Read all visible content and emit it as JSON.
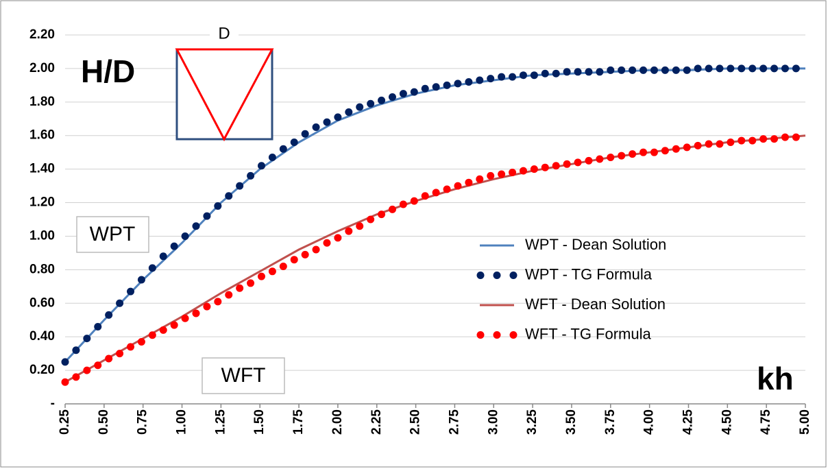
{
  "chart_data": {
    "type": "line",
    "x_label": "kh",
    "y_label": "H/D",
    "annotations": [
      "WPT",
      "WFT",
      "D"
    ],
    "xlim": [
      0.25,
      5.0
    ],
    "ylim": [
      0,
      2.2
    ],
    "grid": true,
    "legend": "right",
    "xticks": [
      0.25,
      {
        "value": 0.5,
        "label": "0.50"
      },
      0.75,
      {
        "value": 1.0,
        "label": "1.00"
      },
      1.25,
      {
        "value": 1.5,
        "label": "1.50"
      },
      1.75,
      {
        "value": 2.0,
        "label": "2.00"
      },
      2.25,
      {
        "value": 2.5,
        "label": "2.50"
      },
      2.75,
      {
        "value": 3.0,
        "label": "3.00"
      },
      3.25,
      {
        "value": 3.5,
        "label": "3.50"
      },
      3.75,
      {
        "value": 4.0,
        "label": "4.00"
      },
      4.25,
      {
        "value": 4.5,
        "label": "4.50"
      },
      4.75,
      {
        "value": 5.0,
        "label": "5.00"
      }
    ],
    "yticks": [
      {
        "value": 0,
        "label": "-"
      },
      {
        "value": 0.2,
        "label": "0.20"
      },
      {
        "value": 0.4,
        "label": "0.40"
      },
      {
        "value": 0.6,
        "label": "0.60"
      },
      {
        "value": 0.8,
        "label": "0.80"
      },
      {
        "value": 1.0,
        "label": "1.00"
      },
      {
        "value": 1.2,
        "label": "1.20"
      },
      {
        "value": 1.4,
        "label": "1.40"
      },
      {
        "value": 1.6,
        "label": "1.60"
      },
      {
        "value": 1.8,
        "label": "1.80"
      },
      {
        "value": 2.0,
        "label": "2.00"
      },
      {
        "value": 2.2,
        "label": "2.20"
      }
    ],
    "series": [
      {
        "name": "WPT - Dean Solution",
        "color": "#4f81bd",
        "style": "line",
        "x": [
          0.25,
          0.5,
          0.75,
          1.0,
          1.25,
          1.5,
          1.75,
          2.0,
          2.25,
          2.5,
          2.75,
          3.0,
          3.25,
          3.5,
          3.75,
          4.0,
          4.25,
          4.5,
          4.75,
          5.0
        ],
        "values": [
          0.25,
          0.5,
          0.74,
          0.96,
          1.2,
          1.4,
          1.56,
          1.69,
          1.78,
          1.85,
          1.9,
          1.93,
          1.96,
          1.97,
          1.98,
          1.99,
          1.99,
          2.0,
          2.0,
          2.0
        ]
      },
      {
        "name": "WPT - TG Formula",
        "color": "#002060",
        "style": "dots",
        "x": [
          0.25,
          0.32,
          0.39,
          0.46,
          0.53,
          0.6,
          0.67,
          0.74,
          0.81,
          0.88,
          0.95,
          1.02,
          1.09,
          1.16,
          1.23,
          1.3,
          1.37,
          1.44,
          1.51,
          1.58,
          1.65,
          1.72,
          1.79,
          1.86,
          1.93,
          2.0,
          2.07,
          2.14,
          2.21,
          2.28,
          2.35,
          2.42,
          2.49,
          2.56,
          2.63,
          2.7,
          2.77,
          2.84,
          2.91,
          2.98,
          3.05,
          3.12,
          3.19,
          3.26,
          3.33,
          3.4,
          3.47,
          3.54,
          3.61,
          3.68,
          3.75,
          3.82,
          3.89,
          3.96,
          4.03,
          4.1,
          4.17,
          4.24,
          4.31,
          4.38,
          4.45,
          4.52,
          4.59,
          4.66,
          4.73,
          4.8,
          4.87,
          4.94
        ],
        "values": [
          0.25,
          0.32,
          0.39,
          0.46,
          0.53,
          0.6,
          0.67,
          0.74,
          0.81,
          0.88,
          0.94,
          1.0,
          1.06,
          1.12,
          1.18,
          1.24,
          1.3,
          1.36,
          1.42,
          1.47,
          1.52,
          1.56,
          1.61,
          1.65,
          1.68,
          1.71,
          1.74,
          1.77,
          1.79,
          1.81,
          1.83,
          1.85,
          1.86,
          1.88,
          1.89,
          1.9,
          1.91,
          1.92,
          1.93,
          1.94,
          1.95,
          1.95,
          1.96,
          1.96,
          1.97,
          1.97,
          1.98,
          1.98,
          1.98,
          1.98,
          1.99,
          1.99,
          1.99,
          1.99,
          1.99,
          1.99,
          1.99,
          1.99,
          2.0,
          2.0,
          2.0,
          2.0,
          2.0,
          2.0,
          2.0,
          2.0,
          2.0,
          2.0
        ]
      },
      {
        "name": "WFT - Dean Solution",
        "color": "#c0504d",
        "style": "line",
        "x": [
          0.25,
          0.5,
          0.75,
          1.0,
          1.25,
          1.5,
          1.75,
          2.0,
          2.25,
          2.5,
          2.75,
          3.0,
          3.25,
          3.5,
          3.75,
          4.0,
          4.25,
          4.5,
          4.75,
          5.0
        ],
        "values": [
          0.13,
          0.26,
          0.39,
          0.52,
          0.66,
          0.79,
          0.92,
          1.03,
          1.13,
          1.21,
          1.28,
          1.34,
          1.39,
          1.43,
          1.47,
          1.5,
          1.53,
          1.56,
          1.58,
          1.6
        ]
      },
      {
        "name": "WFT - TG Formula",
        "color": "#ff0000",
        "style": "dots",
        "x": [
          0.25,
          0.32,
          0.39,
          0.46,
          0.53,
          0.6,
          0.67,
          0.74,
          0.81,
          0.88,
          0.95,
          1.02,
          1.09,
          1.16,
          1.23,
          1.3,
          1.37,
          1.44,
          1.51,
          1.58,
          1.65,
          1.72,
          1.79,
          1.86,
          1.93,
          2.0,
          2.07,
          2.14,
          2.21,
          2.28,
          2.35,
          2.42,
          2.49,
          2.56,
          2.63,
          2.7,
          2.77,
          2.84,
          2.91,
          2.98,
          3.05,
          3.12,
          3.19,
          3.26,
          3.33,
          3.4,
          3.47,
          3.54,
          3.61,
          3.68,
          3.75,
          3.82,
          3.89,
          3.96,
          4.03,
          4.1,
          4.17,
          4.24,
          4.31,
          4.38,
          4.45,
          4.52,
          4.59,
          4.66,
          4.73,
          4.8,
          4.87,
          4.94
        ],
        "values": [
          0.13,
          0.16,
          0.2,
          0.23,
          0.27,
          0.3,
          0.34,
          0.37,
          0.41,
          0.44,
          0.47,
          0.51,
          0.54,
          0.58,
          0.61,
          0.65,
          0.69,
          0.72,
          0.76,
          0.79,
          0.82,
          0.86,
          0.89,
          0.92,
          0.96,
          0.99,
          1.03,
          1.06,
          1.1,
          1.13,
          1.16,
          1.19,
          1.21,
          1.24,
          1.26,
          1.28,
          1.3,
          1.32,
          1.34,
          1.36,
          1.37,
          1.38,
          1.39,
          1.4,
          1.41,
          1.42,
          1.43,
          1.44,
          1.45,
          1.46,
          1.47,
          1.48,
          1.49,
          1.5,
          1.5,
          1.51,
          1.52,
          1.53,
          1.54,
          1.55,
          1.55,
          1.56,
          1.57,
          1.57,
          1.58,
          1.58,
          1.59,
          1.59
        ]
      }
    ]
  }
}
